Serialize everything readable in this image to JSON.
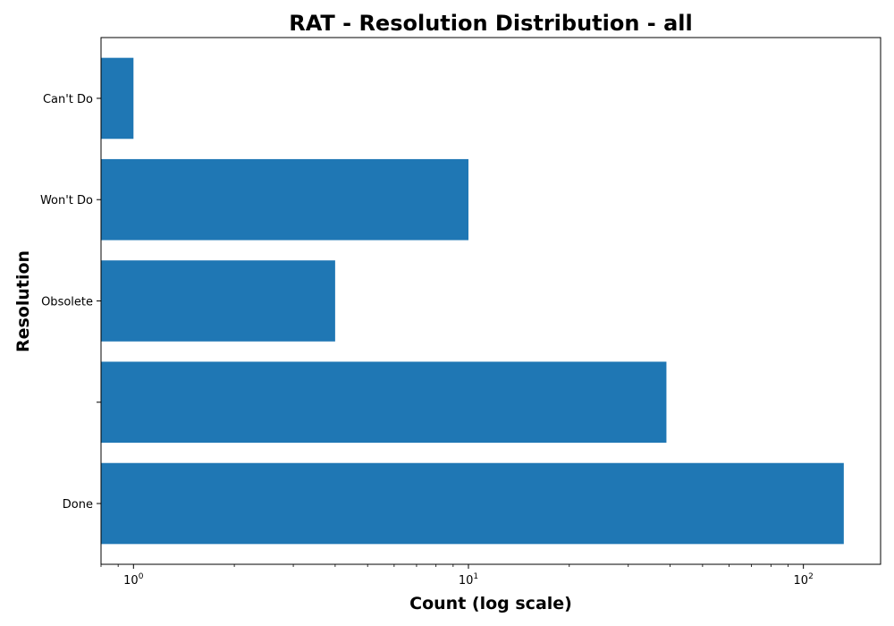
{
  "chart_data": {
    "type": "bar",
    "orientation": "horizontal",
    "title": "RAT - Resolution Distribution - all",
    "xlabel": "Count (log scale)",
    "ylabel": "Resolution",
    "xscale": "log",
    "xlim": [
      0.8,
      170
    ],
    "categories": [
      "Done",
      "",
      "Obsolete",
      "Won't Do",
      "Can't Do"
    ],
    "values": [
      132,
      39,
      4,
      10,
      1
    ],
    "x_ticks": [
      {
        "value": 1,
        "base": "10",
        "exp": "0"
      },
      {
        "value": 10,
        "base": "10",
        "exp": "1"
      },
      {
        "value": 100,
        "base": "10",
        "exp": "2"
      }
    ],
    "bar_color": "#1f77b4",
    "grid": false,
    "legend": "none"
  }
}
